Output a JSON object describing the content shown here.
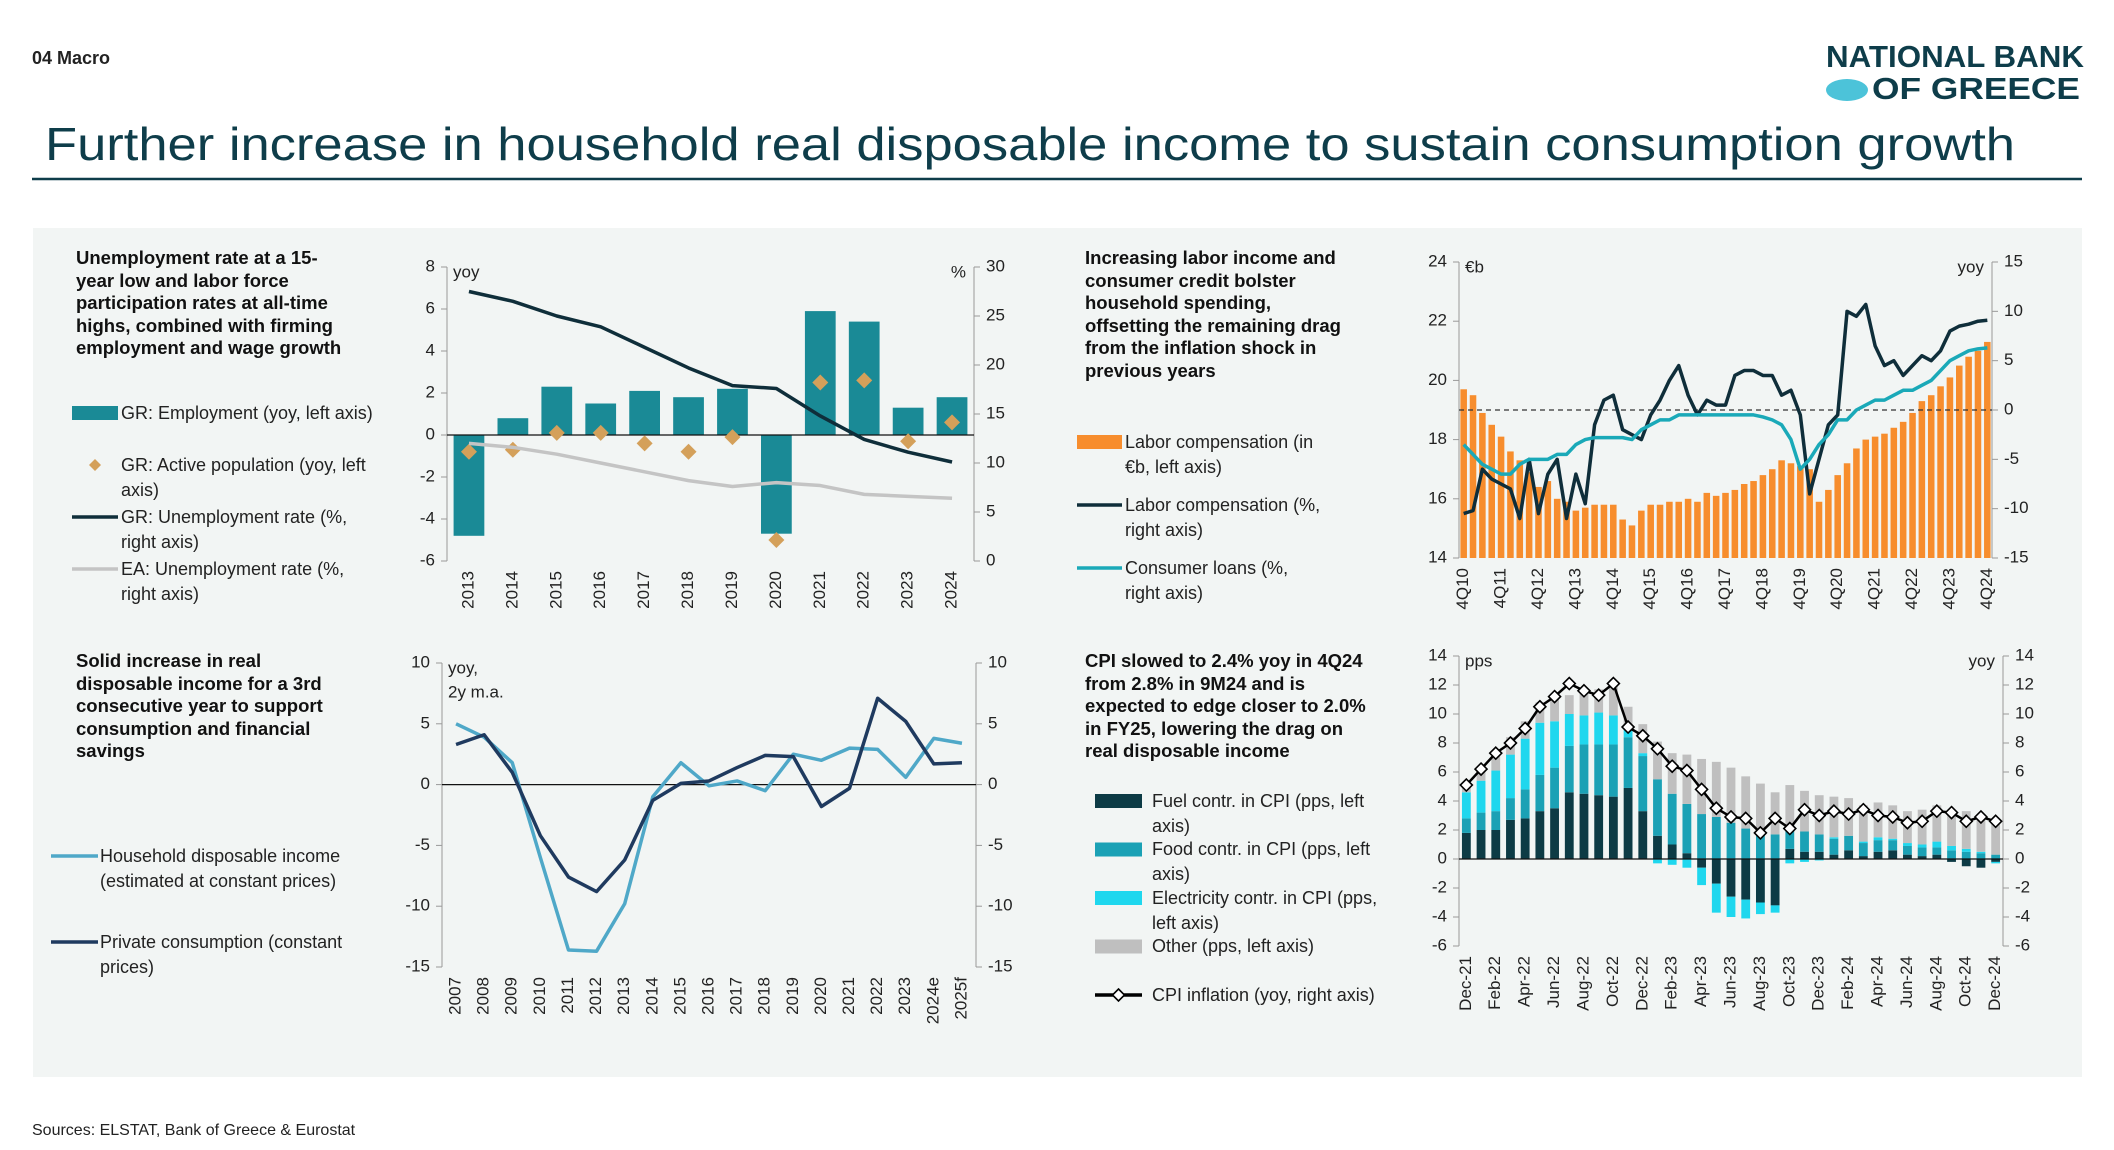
{
  "header": {
    "section": "04 Macro",
    "logo": [
      "NATIONAL BANK",
      "OF GREECE"
    ],
    "title": "Further increase in household real disposable income to sustain consumption growth",
    "source": "Sources: ELSTAT, Bank of Greece & Eurostat"
  },
  "chart_data": [
    {
      "type": "bar",
      "title": "Unemployment rate at a 15-year low and labor force participation rates at all-time highs, combined with firming employment and wage growth",
      "categories": [
        "2013",
        "2014",
        "2015",
        "2016",
        "2017",
        "2018",
        "2019",
        "2020",
        "2021",
        "2022",
        "2023",
        "2024"
      ],
      "series": [
        {
          "name": "GR: Employment (yoy, left axis)",
          "kind": "bar",
          "color": "#1a8a96",
          "values": [
            -4.8,
            0.8,
            2.3,
            1.5,
            2.1,
            1.8,
            2.2,
            -4.7,
            5.9,
            5.4,
            1.3,
            1.8
          ]
        },
        {
          "name": "GR: Active population (yoy, left axis)",
          "kind": "scatter",
          "color": "#d4a05a",
          "values": [
            -0.8,
            -0.7,
            0.1,
            0.1,
            -0.4,
            -0.8,
            -0.1,
            -5.0,
            2.5,
            2.6,
            -0.3,
            0.6
          ]
        },
        {
          "name": "GR: Unemployment rate (%, right axis)",
          "kind": "line",
          "axis": "y2",
          "color": "#0f2e3a",
          "values": [
            27.5,
            26.5,
            25.0,
            23.9,
            21.8,
            19.7,
            17.9,
            17.6,
            14.8,
            12.4,
            11.1,
            10.1
          ]
        },
        {
          "name": "EA: Unemployment rate (%, right axis)",
          "kind": "line",
          "axis": "y2",
          "color": "#c4c4c4",
          "values": [
            12.0,
            11.6,
            10.9,
            10.0,
            9.1,
            8.2,
            7.6,
            8.0,
            7.7,
            6.8,
            6.6,
            6.4
          ]
        }
      ],
      "ylim": [
        -6,
        8
      ],
      "yticks": [
        -6,
        -4,
        -2,
        0,
        2,
        4,
        6,
        8
      ],
      "y2lim": [
        0,
        30
      ],
      "y2ticks": [
        0,
        5,
        10,
        15,
        20,
        25,
        30
      ],
      "y_label": [
        "yoy"
      ],
      "y2_label": [
        "%"
      ],
      "zero_line": "solid",
      "zero_axis": "y"
    },
    {
      "type": "bar",
      "title": "Increasing labor income and consumer credit bolster household spending, offsetting the remaining drag from the inflation shock in previous years",
      "categories": [
        "4Q10",
        null,
        null,
        null,
        "4Q11",
        null,
        null,
        null,
        "4Q12",
        null,
        null,
        null,
        "4Q13",
        null,
        null,
        null,
        "4Q14",
        null,
        null,
        null,
        "4Q15",
        null,
        null,
        null,
        "4Q16",
        null,
        null,
        null,
        "4Q17",
        null,
        null,
        null,
        "4Q18",
        null,
        null,
        null,
        "4Q19",
        null,
        null,
        null,
        "4Q20",
        null,
        null,
        null,
        "4Q21",
        null,
        null,
        null,
        "4Q22",
        null,
        null,
        null,
        "4Q23",
        null,
        null,
        null,
        "4Q24"
      ],
      "series": [
        {
          "name": "Labor compensation (in €b, left axis)",
          "kind": "bar",
          "color": "#f78d2d",
          "values": [
            19.7,
            19.5,
            18.9,
            18.5,
            18.1,
            17.6,
            17.3,
            16.9,
            16.4,
            16.6,
            16.0,
            15.9,
            15.6,
            15.7,
            15.8,
            15.8,
            15.8,
            15.3,
            15.1,
            15.6,
            15.8,
            15.8,
            15.9,
            15.9,
            16.0,
            15.9,
            16.2,
            16.1,
            16.2,
            16.3,
            16.5,
            16.6,
            16.8,
            17.0,
            17.3,
            17.2,
            17.1,
            17.0,
            15.9,
            16.3,
            16.8,
            17.2,
            17.7,
            18.0,
            18.1,
            18.2,
            18.4,
            18.6,
            18.9,
            19.3,
            19.5,
            19.8,
            20.1,
            20.5,
            20.8,
            21.0,
            21.3
          ]
        },
        {
          "name": "Labor compensation (%, right axis)",
          "kind": "line",
          "axis": "y2",
          "color": "#0f2e3a",
          "values": [
            -10.5,
            -10.2,
            -6.0,
            -7.0,
            -7.5,
            -8.0,
            -11.0,
            -5.0,
            -10.5,
            -6.5,
            -5.0,
            -11.0,
            -6.5,
            -9.5,
            -1.5,
            1.0,
            1.5,
            -2.0,
            -2.5,
            -3.0,
            -0.5,
            1.0,
            3.0,
            4.5,
            1.5,
            -0.5,
            1.0,
            0.5,
            0.5,
            3.5,
            4.0,
            4.0,
            3.5,
            3.5,
            1.5,
            2.0,
            -0.5,
            -8.5,
            -5.0,
            -1.5,
            -0.5,
            10.0,
            9.5,
            10.7,
            6.5,
            4.5,
            5.0,
            3.5,
            4.5,
            5.5,
            5.0,
            6.0,
            8.0,
            8.5,
            8.7,
            9.0,
            9.1
          ]
        },
        {
          "name": "Consumer loans (%, right axis)",
          "kind": "line",
          "axis": "y2",
          "color": "#1aa9b8",
          "values": [
            -3.5,
            -4.5,
            -5.5,
            -6.0,
            -6.5,
            -6.5,
            -5.5,
            -5.0,
            -5.0,
            -5.0,
            -4.5,
            -4.5,
            -3.5,
            -3.0,
            -2.8,
            -2.8,
            -2.8,
            -2.8,
            -3.0,
            -2.0,
            -1.5,
            -1.0,
            -1.0,
            -0.5,
            -0.5,
            -0.5,
            -0.5,
            -0.5,
            -0.5,
            -0.5,
            -0.5,
            -0.5,
            -0.7,
            -1.0,
            -1.5,
            -3.0,
            -6.0,
            -5.0,
            -3.5,
            -2.5,
            -1.0,
            -1.0,
            0.0,
            0.5,
            1.0,
            1.0,
            1.5,
            2.0,
            2.0,
            2.5,
            3.0,
            4.0,
            5.0,
            5.5,
            6.0,
            6.2,
            6.3
          ]
        }
      ],
      "ylim": [
        14,
        24
      ],
      "yticks": [
        14,
        16,
        18,
        20,
        22,
        24
      ],
      "y2lim": [
        -15,
        15
      ],
      "y2ticks": [
        -15,
        -10,
        -5,
        0,
        5,
        10,
        15
      ],
      "y_label": [
        "€b"
      ],
      "y2_label": [
        "yoy"
      ],
      "zero_line": "dashed",
      "zero_axis": "y2"
    },
    {
      "type": "line",
      "title": "Solid increase in real disposable income for a 3rd consecutive year to support consumption and financial savings",
      "categories": [
        "2007",
        "2008",
        "2009",
        "2010",
        "2011",
        "2012",
        "2013",
        "2014",
        "2015",
        "2016",
        "2017",
        "2018",
        "2019",
        "2020",
        "2021",
        "2022",
        "2023",
        "2024e",
        "2025f"
      ],
      "series": [
        {
          "name": "Household disposable income (estimated at constant prices)",
          "kind": "line",
          "color": "#4fa8c8",
          "values": [
            5.0,
            3.9,
            1.8,
            -6.0,
            -13.6,
            -13.7,
            -9.8,
            -1.0,
            1.8,
            -0.1,
            0.3,
            -0.5,
            2.5,
            2.0,
            3.0,
            2.9,
            0.6,
            3.8,
            3.4
          ]
        },
        {
          "name": "Private consumption (constant prices)",
          "kind": "line",
          "color": "#1f3a5f",
          "values": [
            3.3,
            4.1,
            1.0,
            -4.2,
            -7.6,
            -8.8,
            -6.2,
            -1.3,
            0.1,
            0.3,
            1.4,
            2.4,
            2.3,
            -1.8,
            -0.3,
            7.1,
            5.2,
            1.7,
            1.8
          ]
        }
      ],
      "ylim": [
        -15,
        10
      ],
      "yticks": [
        -15,
        -10,
        -5,
        0,
        5,
        10
      ],
      "y2lim": [
        -15,
        10
      ],
      "y2ticks": [
        -15,
        -10,
        -5,
        0,
        5,
        10
      ],
      "y_label": [
        "yoy,",
        "2y m.a."
      ],
      "zero_line": "solid",
      "zero_axis": "y"
    },
    {
      "type": "bar",
      "stacked": true,
      "title": "CPI slowed to 2.4% yoy in 4Q24 from 2.8% in 9M24 and is expected to edge closer to 2.0% in FY25, lowering the drag on real disposable income",
      "categories": [
        "Dec-21",
        null,
        "Feb-22",
        null,
        "Apr-22",
        null,
        "Jun-22",
        null,
        "Aug-22",
        null,
        "Oct-22",
        null,
        "Dec-22",
        null,
        "Feb-23",
        null,
        "Apr-23",
        null,
        "Jun-23",
        null,
        "Aug-23",
        null,
        "Oct-23",
        null,
        "Dec-23",
        null,
        "Feb-24",
        null,
        "Apr-24",
        null,
        "Jun-24",
        null,
        "Aug-24",
        null,
        "Oct-24",
        null,
        "Dec-24"
      ],
      "series": [
        {
          "name": "Fuel contr. in CPI (pps, left axis)",
          "kind": "bar",
          "color": "#0d3b45",
          "values": [
            1.8,
            2.0,
            2.0,
            2.7,
            2.8,
            3.3,
            3.5,
            4.6,
            4.5,
            4.4,
            4.3,
            4.9,
            3.3,
            1.6,
            1.0,
            0.4,
            -0.6,
            -1.7,
            -2.6,
            -2.8,
            -3.0,
            -3.2,
            0.7,
            0.5,
            0.5,
            0.3,
            0.6,
            0.2,
            0.5,
            0.6,
            0.3,
            0.2,
            0.3,
            -0.2,
            -0.5,
            -0.6,
            -0.2
          ]
        },
        {
          "name": "Food contr. in CPI (pps, left axis)",
          "kind": "bar",
          "color": "#1ba1b5",
          "values": [
            1.0,
            1.2,
            1.3,
            1.5,
            2.0,
            2.5,
            2.8,
            3.2,
            3.4,
            3.5,
            3.6,
            3.5,
            3.8,
            3.9,
            3.5,
            3.4,
            3.1,
            2.9,
            2.5,
            2.1,
            1.9,
            1.7,
            1.6,
            1.4,
            1.2,
            1.1,
            1.0,
            0.9,
            0.8,
            0.7,
            0.6,
            0.6,
            0.5,
            0.6,
            0.5,
            0.4,
            0.3
          ]
        },
        {
          "name": "Electricity contr. in CPI (pps, left axis)",
          "kind": "bar",
          "color": "#1fd7ee",
          "values": [
            1.8,
            2.2,
            2.8,
            3.0,
            3.5,
            3.6,
            3.2,
            2.2,
            2.0,
            2.2,
            2.0,
            0.6,
            0.2,
            -0.3,
            -0.4,
            -0.6,
            -1.2,
            -2.0,
            -1.4,
            -1.3,
            -0.8,
            -0.5,
            -0.3,
            -0.2,
            -0.1,
            0.1,
            0.0,
            0.1,
            0.2,
            0.1,
            0.2,
            0.2,
            0.4,
            0.3,
            0.2,
            0.1,
            -0.1
          ]
        },
        {
          "name": "Other (pps, left axis)",
          "kind": "bar",
          "color": "#bfbfbf",
          "values": [
            0.5,
            0.8,
            1.0,
            1.2,
            1.2,
            1.4,
            1.6,
            1.3,
            1.5,
            1.6,
            2.0,
            1.5,
            2.0,
            2.6,
            2.8,
            3.4,
            3.8,
            3.8,
            3.8,
            3.6,
            3.3,
            2.9,
            2.8,
            2.8,
            2.7,
            2.8,
            2.6,
            2.5,
            2.4,
            2.3,
            2.2,
            2.4,
            2.5,
            2.5,
            2.6,
            2.6,
            2.5
          ]
        },
        {
          "name": "CPI inflation (yoy, right axis)",
          "kind": "marker-line",
          "axis": "y2",
          "color": "#000000",
          "values": [
            5.1,
            6.2,
            7.3,
            8.0,
            9.0,
            10.5,
            11.2,
            12.1,
            11.6,
            11.3,
            12.1,
            9.1,
            8.5,
            7.6,
            6.4,
            6.1,
            4.8,
            3.5,
            2.9,
            2.8,
            1.8,
            2.8,
            2.1,
            3.4,
            3.0,
            3.3,
            3.1,
            3.4,
            3.0,
            2.9,
            2.5,
            2.6,
            3.3,
            3.2,
            2.6,
            2.9,
            2.6
          ]
        }
      ],
      "ylim": [
        -6,
        14
      ],
      "yticks": [
        -6,
        -4,
        -2,
        0,
        2,
        4,
        6,
        8,
        10,
        12,
        14
      ],
      "y2lim": [
        -6,
        14
      ],
      "y2ticks": [
        -6,
        -4,
        -2,
        0,
        2,
        4,
        6,
        8,
        10,
        12,
        14
      ],
      "y_label": [
        "pps"
      ],
      "y2_label": [
        "yoy"
      ],
      "zero_line": "solid",
      "zero_axis": "y"
    }
  ]
}
